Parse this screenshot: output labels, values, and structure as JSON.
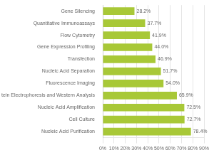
{
  "chart_data": {
    "type": "bar",
    "orientation": "horizontal",
    "categories": [
      "Gene Silencing",
      "Quantitative Immunoassays",
      "Flow Cytometry",
      "Gene Expression Profiling",
      "Transfection",
      "Nucleic Acid Separation",
      "Fluorescence Imaging",
      "Protein Electrophoresis and Western Analysis",
      "Nucleic Acid Amplification",
      "Cell Culture",
      "Nucleic Acid Purification"
    ],
    "values": [
      28.2,
      37.7,
      41.9,
      44.0,
      46.9,
      51.7,
      54.0,
      65.9,
      72.5,
      72.7,
      78.4
    ],
    "value_labels": [
      "28.2%",
      "37.7%",
      "41.9%",
      "44.0%",
      "46.9%",
      "51.7%",
      "54.0%",
      "65.9%",
      "72.5%",
      "72.7%",
      "78.4%"
    ],
    "data_labels": true,
    "color": "#a8c837",
    "xlim": [
      0,
      90
    ],
    "xticks": [
      {
        "value": 0,
        "label": "0%"
      },
      {
        "value": 10,
        "label": "10%"
      },
      {
        "value": 20,
        "label": "20%"
      },
      {
        "value": 30,
        "label": "30%"
      },
      {
        "value": 40,
        "label": "40%"
      },
      {
        "value": 50,
        "label": "50%"
      },
      {
        "value": 60,
        "label": "60%"
      },
      {
        "value": 70,
        "label": "70%"
      },
      {
        "value": 80,
        "label": "80%"
      },
      {
        "value": 90,
        "label": "90%"
      }
    ],
    "grid": true
  }
}
